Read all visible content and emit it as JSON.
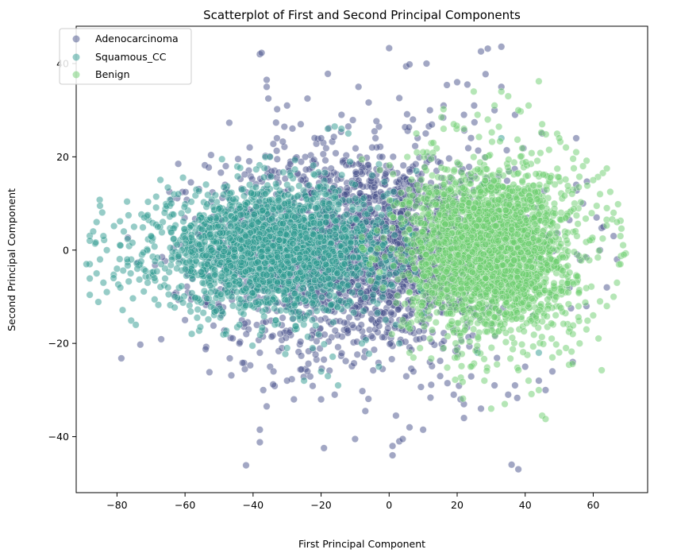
{
  "chart_data": {
    "type": "scatter",
    "title": "Scatterplot of First and Second Principal Components",
    "xlabel": "First Principal Component",
    "ylabel": "Second Principal Component",
    "xlim": [
      -92,
      76
    ],
    "ylim": [
      -52,
      48
    ],
    "x_ticks": [
      -80,
      -60,
      -40,
      -20,
      0,
      20,
      40,
      60
    ],
    "y_ticks": [
      -40,
      -20,
      0,
      20,
      40
    ],
    "x_tick_labels": [
      "−80",
      "−60",
      "−40",
      "−20",
      "0",
      "20",
      "40",
      "60"
    ],
    "y_tick_labels": [
      "−40",
      "−20",
      "0",
      "20",
      "40"
    ],
    "grid": false,
    "legend_position": "upper-left",
    "marker_opacity": 0.5,
    "series": [
      {
        "name": "Adenocarcinoma",
        "color": "#46508a",
        "center": [
          -8,
          0
        ],
        "spread": [
          22,
          11
        ],
        "points": [
          [
            -38,
            42
          ],
          [
            -37.5,
            42.3
          ],
          [
            -36,
            36.5
          ],
          [
            -36,
            35
          ],
          [
            -35.5,
            32.5
          ],
          [
            -18,
            37.8
          ],
          [
            -24,
            32.5
          ],
          [
            -9,
            35
          ],
          [
            0,
            43.3
          ],
          [
            3,
            32.6
          ],
          [
            11,
            40
          ],
          [
            5,
            39.4
          ],
          [
            6,
            39.8
          ],
          [
            20,
            36
          ],
          [
            17,
            35.4
          ],
          [
            23,
            35.5
          ],
          [
            27,
            42.6
          ],
          [
            29,
            43.2
          ],
          [
            33,
            43.6
          ],
          [
            -47,
            27.3
          ],
          [
            -62,
            18.5
          ],
          [
            -30,
            31
          ],
          [
            -14,
            29
          ],
          [
            -26,
            27
          ],
          [
            -20,
            24
          ],
          [
            -12,
            26.5
          ],
          [
            -5,
            22
          ],
          [
            -33,
            24
          ],
          [
            -41,
            22
          ],
          [
            7,
            28
          ],
          [
            12,
            30
          ],
          [
            16,
            31
          ],
          [
            22,
            29
          ],
          [
            25,
            31
          ],
          [
            33,
            35
          ],
          [
            31,
            30
          ],
          [
            37,
            29
          ],
          [
            45,
            25
          ],
          [
            55,
            24
          ],
          [
            -54,
            -10
          ],
          [
            -50,
            -12
          ],
          [
            -42,
            -18
          ],
          [
            -38,
            -22
          ],
          [
            -35,
            -25
          ],
          [
            -30,
            -28
          ],
          [
            -28,
            -32
          ],
          [
            -20,
            -32
          ],
          [
            -16,
            -31
          ],
          [
            -10,
            -40.5
          ],
          [
            -7,
            -34.5
          ],
          [
            1,
            -44
          ],
          [
            1,
            -42
          ],
          [
            3,
            -41
          ],
          [
            4,
            -40.5
          ],
          [
            2,
            -35.5
          ],
          [
            6,
            -38
          ],
          [
            10,
            -38.5
          ],
          [
            -38,
            -38.5
          ],
          [
            -38,
            -41.2
          ],
          [
            -36,
            -33.5
          ],
          [
            -37,
            -30
          ],
          [
            -34,
            -26
          ],
          [
            19,
            -31
          ],
          [
            21,
            -32
          ],
          [
            22,
            -36
          ],
          [
            27,
            -34
          ],
          [
            31,
            -29
          ],
          [
            35,
            -31
          ],
          [
            37,
            -29
          ],
          [
            40,
            -25
          ],
          [
            44,
            -28
          ],
          [
            46,
            -30
          ],
          [
            48,
            -26
          ],
          [
            54,
            -24
          ],
          [
            36,
            -46
          ],
          [
            38,
            -47
          ],
          [
            12,
            -24
          ],
          [
            15,
            -27
          ],
          [
            -24,
            -26
          ],
          [
            -44,
            -20
          ],
          [
            -60,
            -15
          ],
          [
            -58,
            -10
          ],
          [
            61,
            7
          ],
          [
            63,
            5
          ],
          [
            66,
            3
          ],
          [
            67,
            -2
          ],
          [
            64,
            -8
          ],
          [
            58,
            -12
          ],
          [
            62,
            0
          ],
          [
            57,
            10
          ],
          [
            55,
            14
          ],
          [
            -4,
            24
          ],
          [
            -2,
            20
          ]
        ]
      },
      {
        "name": "Squamous_CC",
        "color": "#2e9a90",
        "center": [
          -34,
          0
        ],
        "spread": [
          17,
          6.5
        ],
        "points": [
          [
            -85,
            9.5
          ],
          [
            -86,
            6
          ],
          [
            -87,
            4
          ],
          [
            -88,
            2
          ],
          [
            -84,
            3
          ],
          [
            -83,
            0
          ],
          [
            -85,
            -2
          ],
          [
            -88,
            -3
          ],
          [
            -89,
            -3
          ],
          [
            -86,
            -5
          ],
          [
            -84,
            -7
          ],
          [
            -83,
            -9
          ],
          [
            -81,
            -6
          ],
          [
            -80,
            -4
          ],
          [
            -79,
            1
          ],
          [
            -78,
            4
          ],
          [
            -77,
            -2
          ],
          [
            -76,
            -5
          ],
          [
            -75,
            5
          ],
          [
            -74,
            -4
          ],
          [
            -72,
            7
          ],
          [
            -71,
            7.5
          ],
          [
            -70,
            3
          ],
          [
            -71,
            -7
          ],
          [
            -69,
            -6
          ],
          [
            -68,
            5
          ],
          [
            -67,
            -3
          ],
          [
            -66,
            8
          ],
          [
            -65,
            -8
          ],
          [
            -64,
            10
          ],
          [
            -63,
            -10
          ],
          [
            -62,
            12
          ],
          [
            -18,
            26
          ],
          [
            -16,
            26.5
          ],
          [
            -14,
            26
          ],
          [
            -12,
            25
          ],
          [
            -35,
            20
          ],
          [
            -29,
            16
          ],
          [
            -41,
            14
          ],
          [
            -20,
            -26
          ],
          [
            -18,
            -27
          ],
          [
            -15,
            -29
          ],
          [
            -25,
            -28
          ],
          [
            -48,
            -18
          ],
          [
            -44,
            -16
          ],
          [
            -30,
            -21
          ],
          [
            -8,
            -20
          ],
          [
            -3,
            -25
          ],
          [
            3,
            -20
          ],
          [
            -1,
            -15
          ],
          [
            2,
            -16
          ],
          [
            -5,
            16
          ],
          [
            -10,
            14
          ],
          [
            44,
            -22
          ],
          [
            33,
            24
          ],
          [
            26,
            -22
          ],
          [
            8,
            17
          ]
        ]
      },
      {
        "name": "Benign",
        "color": "#6cce6e",
        "center": [
          30,
          0
        ],
        "spread": [
          12,
          9
        ],
        "points": [
          [
            44,
            36.2
          ],
          [
            33,
            34
          ],
          [
            35,
            33
          ],
          [
            31,
            31
          ],
          [
            38,
            30
          ],
          [
            41,
            31
          ],
          [
            45,
            27
          ],
          [
            50,
            24
          ],
          [
            52,
            22
          ],
          [
            55,
            21
          ],
          [
            57,
            18
          ],
          [
            60,
            15
          ],
          [
            62,
            12
          ],
          [
            65,
            12.5
          ],
          [
            64,
            9
          ],
          [
            66,
            8
          ],
          [
            67,
            6
          ],
          [
            68,
            3
          ],
          [
            69,
            -1
          ],
          [
            68,
            -3
          ],
          [
            67,
            -7
          ],
          [
            66,
            -10
          ],
          [
            64,
            -12
          ],
          [
            62,
            -11
          ],
          [
            60,
            -14
          ],
          [
            58,
            -17
          ],
          [
            56,
            -20
          ],
          [
            54,
            -18
          ],
          [
            52,
            -21
          ],
          [
            48,
            -23
          ],
          [
            45,
            -35.5
          ],
          [
            46,
            -36.2
          ],
          [
            44,
            -30
          ],
          [
            41,
            -28
          ],
          [
            34,
            -33
          ],
          [
            30,
            -34
          ],
          [
            28,
            -28
          ],
          [
            24,
            -25
          ],
          [
            20,
            -23
          ],
          [
            16,
            -21
          ],
          [
            12,
            -19
          ],
          [
            6,
            -22
          ],
          [
            4,
            -15
          ],
          [
            8,
            25
          ],
          [
            10,
            21
          ],
          [
            13,
            23
          ],
          [
            16,
            26
          ],
          [
            19,
            27
          ],
          [
            22,
            26
          ],
          [
            26,
            29
          ],
          [
            29,
            28
          ]
        ]
      }
    ]
  }
}
